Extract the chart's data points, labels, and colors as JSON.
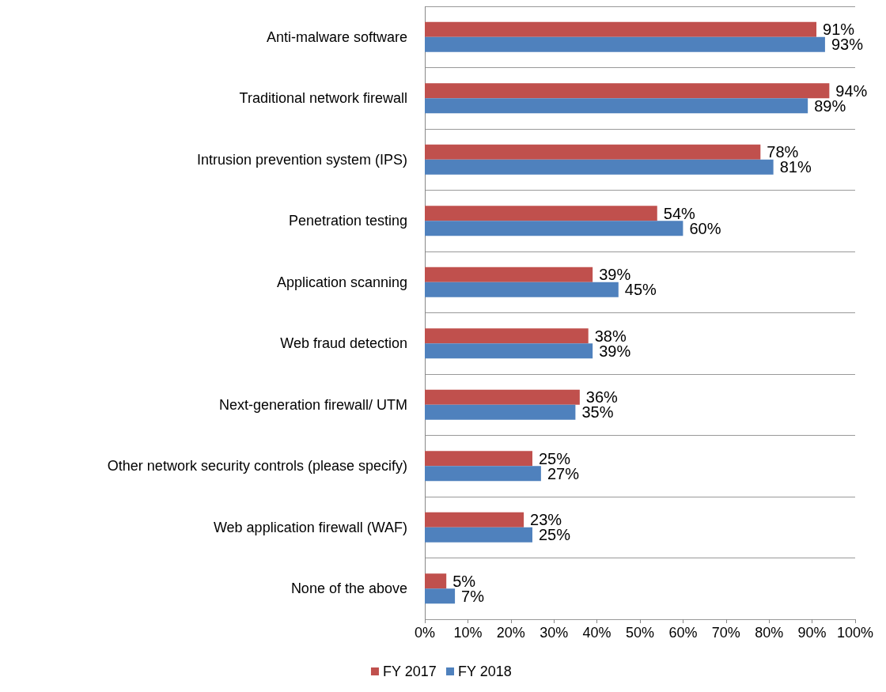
{
  "chart_data": {
    "type": "bar",
    "orientation": "horizontal",
    "categories": [
      "Anti-malware software",
      "Traditional network firewall",
      "Intrusion prevention system (IPS)",
      "Penetration testing",
      "Application scanning",
      "Web fraud detection",
      "Next-generation firewall/ UTM",
      "Other network security controls (please specify)",
      "Web application firewall (WAF)",
      "None of the above"
    ],
    "series": [
      {
        "name": "FY 2017",
        "color": "#c0504d",
        "values": [
          91,
          94,
          78,
          54,
          39,
          38,
          36,
          25,
          23,
          5
        ],
        "value_labels": [
          "91%",
          "94%",
          "78%",
          "54%",
          "39%",
          "38%",
          "36%",
          "25%",
          "23%",
          "5%"
        ]
      },
      {
        "name": "FY 2018",
        "color": "#4f81bd",
        "values": [
          93,
          89,
          81,
          60,
          45,
          39,
          35,
          27,
          25,
          7
        ],
        "value_labels": [
          "93%",
          "89%",
          "81%",
          "60%",
          "45%",
          "39%",
          "35%",
          "27%",
          "25%",
          "7%"
        ]
      }
    ],
    "xlim": [
      0,
      100
    ],
    "xticks": [
      {
        "value": 0,
        "label": "0%"
      },
      {
        "value": 10,
        "label": "10%"
      },
      {
        "value": 20,
        "label": "20%"
      },
      {
        "value": 30,
        "label": "30%"
      },
      {
        "value": 40,
        "label": "40%"
      },
      {
        "value": 50,
        "label": "50%"
      },
      {
        "value": 60,
        "label": "60%"
      },
      {
        "value": 70,
        "label": "70%"
      },
      {
        "value": 80,
        "label": "80%"
      },
      {
        "value": 90,
        "label": "90%"
      },
      {
        "value": 100,
        "label": "100%"
      }
    ],
    "grid": "y",
    "legend": "bottom"
  }
}
